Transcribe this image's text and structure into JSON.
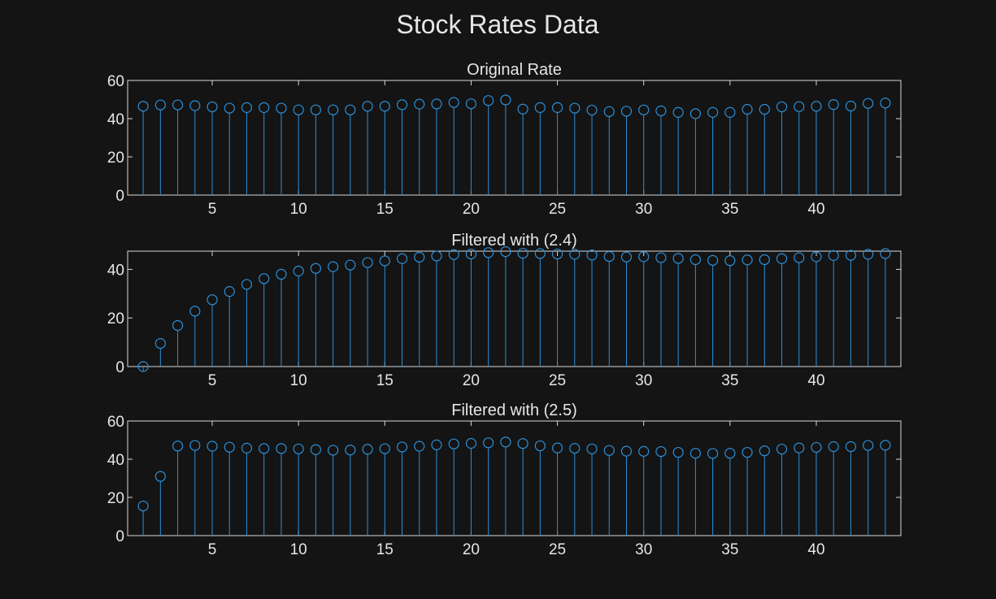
{
  "figure": {
    "title": "Stock Rates Data",
    "colors": {
      "background": "#141414",
      "axes": "#d9d9d9",
      "text": "#e6e6e6",
      "stem": "#2b8fd9"
    }
  },
  "chart_data": [
    {
      "type": "stem",
      "title": "Original Rate",
      "xlim": [
        0.1,
        44.9
      ],
      "ylim": [
        0,
        60
      ],
      "xticks": [
        5,
        10,
        15,
        20,
        25,
        30,
        35,
        40
      ],
      "yticks": [
        0,
        20,
        40,
        60
      ],
      "x": [
        1,
        2,
        3,
        4,
        5,
        6,
        7,
        8,
        9,
        10,
        11,
        12,
        13,
        14,
        15,
        16,
        17,
        18,
        19,
        20,
        21,
        22,
        23,
        24,
        25,
        26,
        27,
        28,
        29,
        30,
        31,
        32,
        33,
        34,
        35,
        36,
        37,
        38,
        39,
        40,
        41,
        42,
        43,
        44
      ],
      "values": [
        46.5,
        47.2,
        47.2,
        46.8,
        46.2,
        45.5,
        45.8,
        45.8,
        45.5,
        44.6,
        44.6,
        44.6,
        44.6,
        46.5,
        46.5,
        47.3,
        47.6,
        47.7,
        48.5,
        47.8,
        49.5,
        49.8,
        45.0,
        45.8,
        45.8,
        45.5,
        44.5,
        43.7,
        43.9,
        44.6,
        44.1,
        43.3,
        42.6,
        43.3,
        43.3,
        44.9,
        44.9,
        46.2,
        46.3,
        46.5,
        47.4,
        46.6,
        48.0,
        48.2
      ]
    },
    {
      "type": "stem",
      "title": "Filtered with (2.4)",
      "xlim": [
        0.1,
        44.9
      ],
      "ylim": [
        0,
        47.5
      ],
      "xticks": [
        5,
        10,
        15,
        20,
        25,
        30,
        35,
        40
      ],
      "yticks": [
        0,
        20,
        40
      ],
      "x": [
        1,
        2,
        3,
        4,
        5,
        6,
        7,
        8,
        9,
        10,
        11,
        12,
        13,
        14,
        15,
        16,
        17,
        18,
        19,
        20,
        21,
        22,
        23,
        24,
        25,
        26,
        27,
        28,
        29,
        30,
        31,
        32,
        33,
        34,
        35,
        36,
        37,
        38,
        39,
        40,
        41,
        42,
        43,
        44
      ],
      "values": [
        0.0,
        9.5,
        16.9,
        22.8,
        27.5,
        30.9,
        33.8,
        36.2,
        38.0,
        39.3,
        40.4,
        41.1,
        41.8,
        42.8,
        43.5,
        44.4,
        45.0,
        45.5,
        46.1,
        46.3,
        46.9,
        47.3,
        46.6,
        46.5,
        46.3,
        46.2,
        45.9,
        45.3,
        45.1,
        45.2,
        44.8,
        44.5,
        44.0,
        43.7,
        43.6,
        43.9,
        44.0,
        44.4,
        44.8,
        45.2,
        45.7,
        45.8,
        46.2,
        46.5
      ]
    },
    {
      "type": "stem",
      "title": "Filtered with (2.5)",
      "xlim": [
        0.1,
        44.9
      ],
      "ylim": [
        0,
        60
      ],
      "xticks": [
        5,
        10,
        15,
        20,
        25,
        30,
        35,
        40
      ],
      "yticks": [
        0,
        20,
        40,
        60
      ],
      "x": [
        1,
        2,
        3,
        4,
        5,
        6,
        7,
        8,
        9,
        10,
        11,
        12,
        13,
        14,
        15,
        16,
        17,
        18,
        19,
        20,
        21,
        22,
        23,
        24,
        25,
        26,
        27,
        28,
        29,
        30,
        31,
        32,
        33,
        34,
        35,
        36,
        37,
        38,
        39,
        40,
        41,
        42,
        43,
        44
      ],
      "values": [
        15.5,
        31.0,
        46.9,
        47.2,
        46.8,
        46.3,
        45.8,
        45.6,
        45.6,
        45.4,
        45.0,
        44.7,
        44.8,
        45.2,
        45.5,
        46.4,
        46.8,
        47.5,
        48.0,
        48.3,
        48.6,
        49.0,
        48.2,
        47.0,
        45.9,
        45.7,
        45.4,
        44.6,
        44.2,
        44.1,
        44.0,
        43.6,
        43.1,
        43.0,
        43.1,
        43.6,
        44.4,
        45.3,
        45.9,
        46.2,
        46.6,
        46.6,
        47.2,
        47.3
      ]
    }
  ]
}
